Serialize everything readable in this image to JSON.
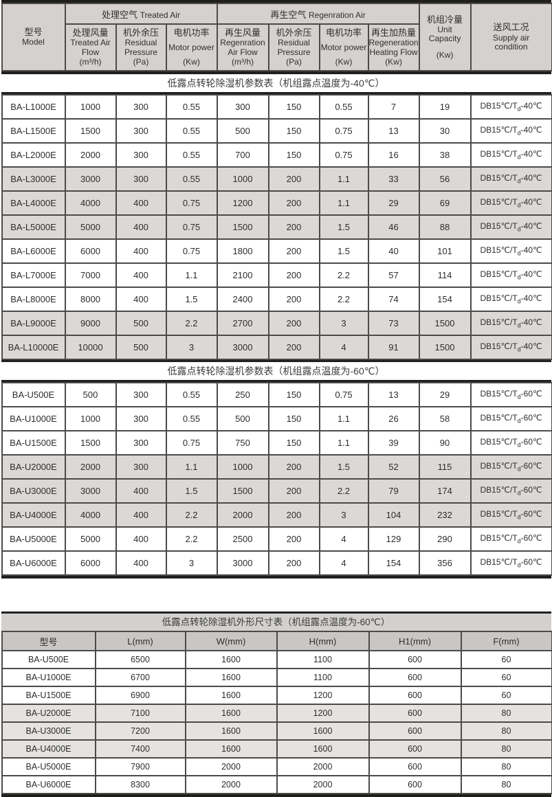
{
  "colors": {
    "header-bg": "#d5d1ce",
    "row-alt": "#dcd8d5",
    "border": "#4c4a48",
    "heavy-line": "#1f1f1d",
    "dim-title-bg": "#d3d1cf",
    "dim-header-bg": "#c9c7c5",
    "dim-row-alt": "#e5e3e1",
    "text": "#2d2d2d"
  },
  "spec_header": {
    "model": {
      "zh": "型号",
      "en": "Model"
    },
    "groups": [
      {
        "zh": "处理空气",
        "en": "Treated Air"
      },
      {
        "zh": "再生空气",
        "en": "Regenration Air"
      }
    ],
    "subcols": [
      {
        "zh": "处理风量",
        "en": "Treated Air Flow",
        "unit": "(m³/h)"
      },
      {
        "zh": "机外余压",
        "en": "Residual Pressure",
        "unit": "(Pa)"
      },
      {
        "zh": "电机功率",
        "en": "Motor power",
        "unit": "(Kw)"
      },
      {
        "zh": "再生风量",
        "en": "Regenration Air Flow",
        "unit": "(m³/h)"
      },
      {
        "zh": "机外余压",
        "en": "Residual Pressure",
        "unit": "(Pa)"
      },
      {
        "zh": "电机功率",
        "en": "Motor power",
        "unit": "(Kw)"
      },
      {
        "zh": "再生加热量",
        "en": "Regeneration Heating Flow",
        "unit": "(Kw)"
      }
    ],
    "unit_capacity": {
      "zh": "机组冷量",
      "en": "Unit Capacity",
      "unit": "(Kw)"
    },
    "supply": {
      "zh": "送风工况",
      "en": "Supply air condition"
    }
  },
  "sections": [
    {
      "title": "低露点转轮除湿机参数表（机组露点温度为-40℃）",
      "supply_condition": {
        "pre": "DB15℃/T",
        "sub": "d",
        "post": "-40℃",
        "full": "DB15℃/Td-40℃"
      },
      "rows": [
        [
          "BA-L1000E",
          "1000",
          "300",
          "0.55",
          "300",
          "150",
          "0.55",
          "7",
          "19"
        ],
        [
          "BA-L1500E",
          "1500",
          "300",
          "0.55",
          "500",
          "150",
          "0.75",
          "13",
          "30"
        ],
        [
          "BA-L2000E",
          "2000",
          "300",
          "0.55",
          "700",
          "150",
          "0.75",
          "16",
          "38"
        ],
        [
          "BA-L3000E",
          "3000",
          "300",
          "0.55",
          "1000",
          "200",
          "1.1",
          "33",
          "56"
        ],
        [
          "BA-L4000E",
          "4000",
          "400",
          "0.75",
          "1200",
          "200",
          "1.1",
          "29",
          "69"
        ],
        [
          "BA-L5000E",
          "5000",
          "400",
          "0.75",
          "1500",
          "200",
          "1.5",
          "46",
          "88"
        ],
        [
          "BA-L6000E",
          "6000",
          "400",
          "0.75",
          "1800",
          "200",
          "1.5",
          "40",
          "101"
        ],
        [
          "BA-L7000E",
          "7000",
          "400",
          "1.1",
          "2100",
          "200",
          "2.2",
          "57",
          "114"
        ],
        [
          "BA-L8000E",
          "8000",
          "400",
          "1.5",
          "2400",
          "200",
          "2.2",
          "74",
          "154"
        ],
        [
          "BA-L9000E",
          "9000",
          "500",
          "2.2",
          "2700",
          "200",
          "3",
          "73",
          "1500"
        ],
        [
          "BA-L10000E",
          "10000",
          "500",
          "3",
          "3000",
          "200",
          "4",
          "91",
          "1500"
        ]
      ]
    },
    {
      "title": "低露点转轮除湿机参数表（机组露点温度为-60℃）",
      "supply_condition": {
        "pre": "DB15℃/T",
        "sub": "d",
        "post": "-60℃",
        "full": "DB15℃/Td-60℃"
      },
      "rows": [
        [
          "BA-U500E",
          "500",
          "300",
          "0.55",
          "250",
          "150",
          "0.75",
          "13",
          "29"
        ],
        [
          "BA-U1000E",
          "1000",
          "300",
          "0.55",
          "500",
          "150",
          "1.1",
          "26",
          "58"
        ],
        [
          "BA-U1500E",
          "1500",
          "300",
          "0.75",
          "750",
          "150",
          "1.1",
          "39",
          "90"
        ],
        [
          "BA-U2000E",
          "2000",
          "300",
          "1.1",
          "1000",
          "200",
          "1.5",
          "52",
          "115"
        ],
        [
          "BA-U3000E",
          "3000",
          "400",
          "1.5",
          "1500",
          "200",
          "2.2",
          "79",
          "174"
        ],
        [
          "BA-U4000E",
          "4000",
          "400",
          "2.2",
          "2000",
          "200",
          "3",
          "104",
          "232"
        ],
        [
          "BA-U5000E",
          "5000",
          "400",
          "2.2",
          "2500",
          "200",
          "4",
          "129",
          "290"
        ],
        [
          "BA-U6000E",
          "6000",
          "400",
          "3",
          "3000",
          "200",
          "4",
          "154",
          "356"
        ]
      ]
    }
  ],
  "dimension_table": {
    "title": "低露点转轮除湿机外形尺寸表（机组露点温度为-60℃）",
    "headers": [
      "型号",
      "L(mm)",
      "W(mm)",
      "H(mm)",
      "H1(mm)",
      "F(mm)"
    ],
    "rows": [
      [
        "BA-U500E",
        "6500",
        "1600",
        "1100",
        "600",
        "60"
      ],
      [
        "BA-U1000E",
        "6700",
        "1600",
        "1100",
        "600",
        "60"
      ],
      [
        "BA-U1500E",
        "6900",
        "1600",
        "1200",
        "600",
        "60"
      ],
      [
        "BA-U2000E",
        "7100",
        "1600",
        "1200",
        "600",
        "80"
      ],
      [
        "BA-U3000E",
        "7200",
        "1600",
        "1600",
        "600",
        "80"
      ],
      [
        "BA-U4000E",
        "7400",
        "1600",
        "1600",
        "600",
        "80"
      ],
      [
        "BA-U5000E",
        "7900",
        "2000",
        "2000",
        "600",
        "80"
      ],
      [
        "BA-U6000E",
        "8300",
        "2000",
        "2000",
        "600",
        "80"
      ]
    ]
  }
}
